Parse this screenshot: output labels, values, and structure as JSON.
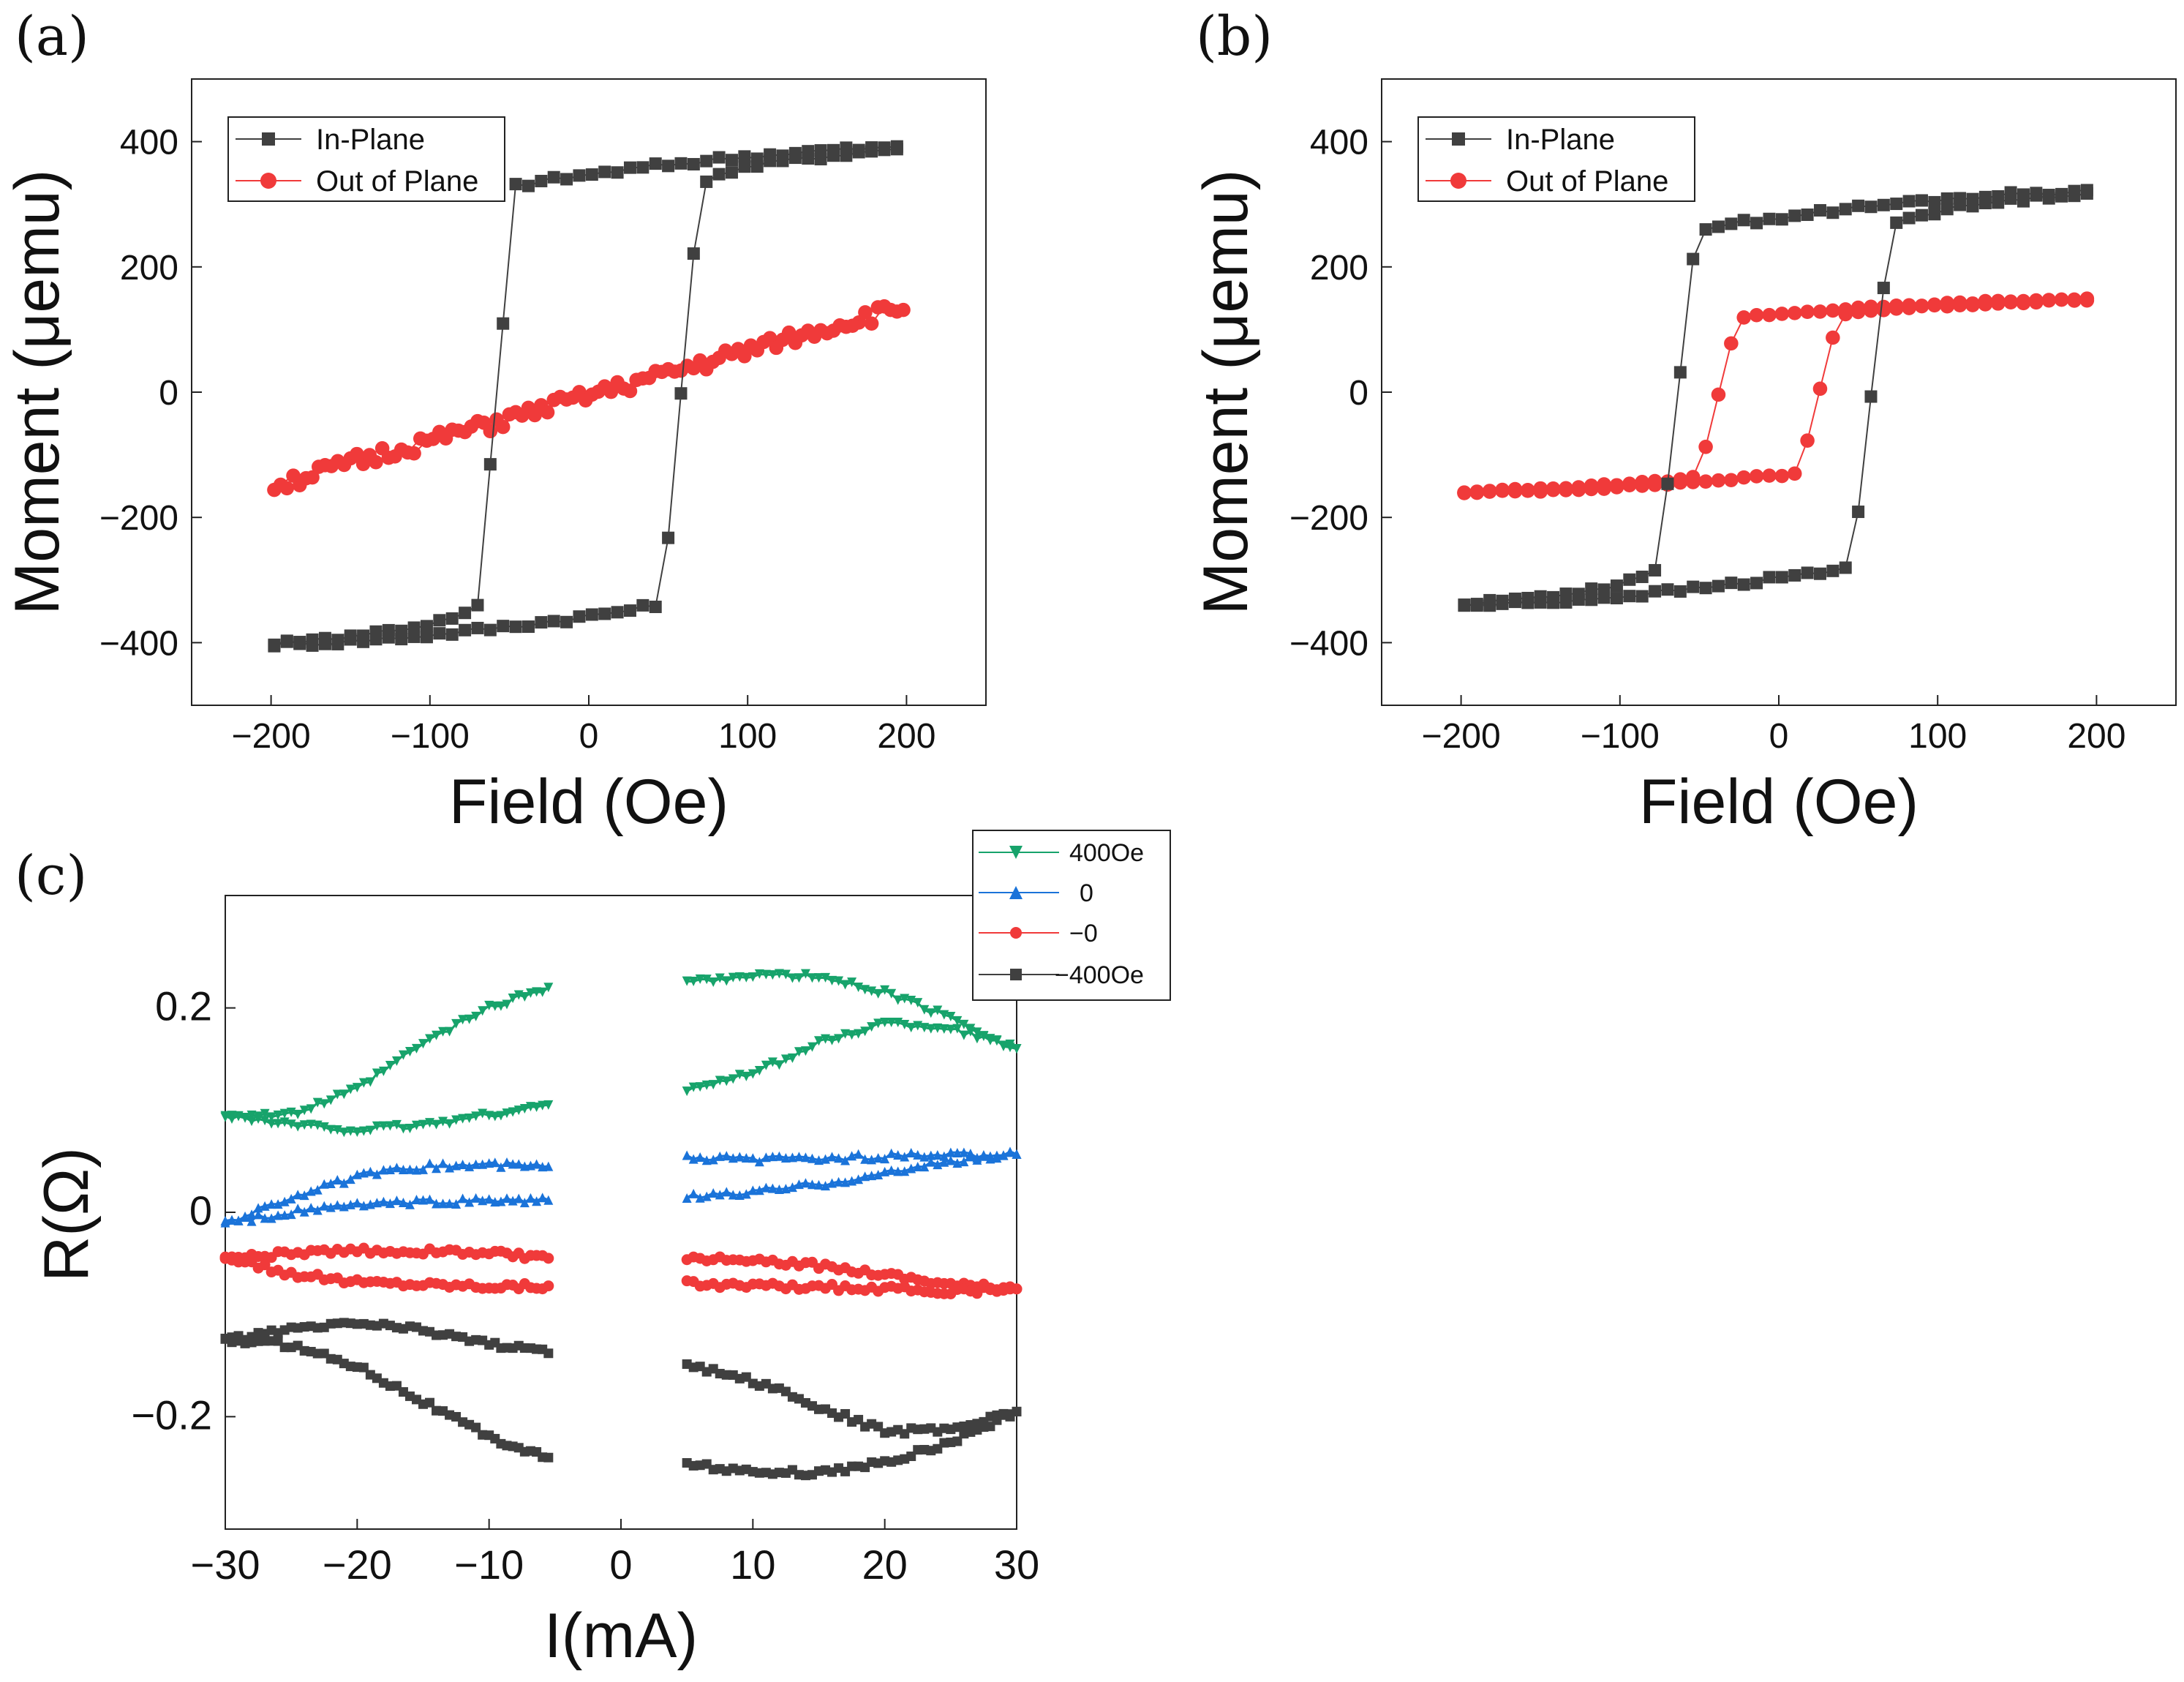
{
  "colors": {
    "in_plane": "#404040",
    "out_of_plane": "#f03a3a",
    "c_400": "#17a36b",
    "c_0": "#1a73d9",
    "c_m0": "#f03a3a",
    "c_m400": "#404040"
  },
  "chart_data": [
    {
      "type": "scatter",
      "panel": "(a)",
      "xlabel": "Field (Oe)",
      "ylabel": "Moment (μemu)",
      "xlim": [
        -250,
        250
      ],
      "ylim": [
        -500,
        500
      ],
      "xticks": [
        -200,
        -100,
        0,
        100,
        200
      ],
      "yticks": [
        -400,
        -200,
        0,
        200,
        400
      ],
      "xtick_labels": [
        "−200",
        "−100",
        "0",
        "100",
        "200"
      ],
      "ytick_labels": [
        "−400",
        "−200",
        "0",
        "200",
        "400"
      ],
      "legend": [
        "In-Plane",
        "Out of Plane"
      ],
      "legend_position": "top-left",
      "series": [
        {
          "name": "In-Plane",
          "marker": "square",
          "loop": {
            "hc_up": 58,
            "hc_down": -58,
            "sat_low": -402,
            "sat_high": 390,
            "knee_low": -340,
            "knee_high": 330
          }
        },
        {
          "name": "Out of Plane",
          "marker": "circle",
          "line": {
            "x_start": -198,
            "x_end": 198,
            "y_start": -150,
            "y_end": 135
          }
        }
      ]
    },
    {
      "type": "scatter",
      "panel": "(b)",
      "xlabel": "Field (Oe)",
      "ylabel": "Moment (μemu)",
      "xlim": [
        -250,
        250
      ],
      "ylim": [
        -500,
        500
      ],
      "xticks": [
        -200,
        -100,
        0,
        100,
        200
      ],
      "yticks": [
        -400,
        -200,
        0,
        200,
        400
      ],
      "xtick_labels": [
        "−200",
        "−100",
        "0",
        "100",
        "200"
      ],
      "ytick_labels": [
        "−400",
        "−200",
        "0",
        "200",
        "400"
      ],
      "legend": [
        "In-Plane",
        "Out of Plane"
      ],
      "legend_position": "top-left",
      "series": [
        {
          "name": "In-Plane",
          "marker": "square",
          "loop": {
            "hc_up": 58,
            "hc_down": -64,
            "sat_low": -340,
            "sat_high": 320,
            "knee_low": -280,
            "knee_high": 260
          }
        },
        {
          "name": "Out of Plane",
          "marker": "circle",
          "loop": {
            "hc_up": 25,
            "hc_down": -38,
            "sat_low": -160,
            "sat_high": 148,
            "knee_low": -130,
            "knee_high": 120
          }
        }
      ]
    },
    {
      "type": "scatter",
      "panel": "(c)",
      "xlabel": "I(mA)",
      "ylabel": "R(Ω)",
      "xlim": [
        -30,
        30
      ],
      "ylim": [
        -0.31,
        0.31
      ],
      "xticks": [
        -30,
        -20,
        -10,
        0,
        10,
        20,
        30
      ],
      "yticks": [
        -0.2,
        0,
        0.2
      ],
      "xtick_labels": [
        "−30",
        "−20",
        "−10",
        "0",
        "10",
        "20",
        "30"
      ],
      "ytick_labels": [
        "−0.2",
        "0",
        "0.2"
      ],
      "legend": [
        "400Oe",
        "0",
        "−0",
        "−400Oe"
      ],
      "legend_position": "top-right",
      "series": [
        {
          "name": "400Oe",
          "marker": "triangle-down",
          "branches": [
            {
              "x": [
                -30,
                -25,
                -20,
                -15,
                -10,
                -5.5
              ],
              "y": [
                0.095,
                0.095,
                0.12,
                0.165,
                0.2,
                0.22
              ]
            },
            {
              "x": [
                -30,
                -25,
                -20,
                -15,
                -10,
                -5.5
              ],
              "y": [
                0.095,
                0.085,
                0.08,
                0.085,
                0.095,
                0.105
              ]
            },
            {
              "x": [
                5,
                10,
                15,
                20,
                25,
                30
              ],
              "y": [
                0.225,
                0.232,
                0.23,
                0.215,
                0.19,
                0.16
              ]
            },
            {
              "x": [
                5,
                10,
                15,
                20,
                25,
                30
              ],
              "y": [
                0.12,
                0.135,
                0.165,
                0.185,
                0.18,
                0.16
              ]
            }
          ]
        },
        {
          "name": "0",
          "marker": "triangle-up",
          "branches": [
            {
              "x": [
                -30,
                -25,
                -20,
                -15,
                -10,
                -5.5
              ],
              "y": [
                -0.01,
                0.015,
                0.035,
                0.045,
                0.047,
                0.045
              ]
            },
            {
              "x": [
                -30,
                -25,
                -20,
                -15,
                -10,
                -5.5
              ],
              "y": [
                -0.01,
                0.0,
                0.008,
                0.01,
                0.012,
                0.012
              ]
            },
            {
              "x": [
                5,
                10,
                15,
                20,
                25,
                30
              ],
              "y": [
                0.053,
                0.052,
                0.053,
                0.055,
                0.056,
                0.057
              ]
            },
            {
              "x": [
                5,
                10,
                15,
                20,
                25,
                30
              ],
              "y": [
                0.015,
                0.02,
                0.028,
                0.038,
                0.05,
                0.057
              ]
            }
          ]
        },
        {
          "name": "−0",
          "marker": "circle",
          "branches": [
            {
              "x": [
                -30,
                -25,
                -20,
                -15,
                -10,
                -5.5
              ],
              "y": [
                -0.045,
                -0.04,
                -0.038,
                -0.038,
                -0.04,
                -0.045
              ]
            },
            {
              "x": [
                -30,
                -25,
                -20,
                -15,
                -10,
                -5.5
              ],
              "y": [
                -0.045,
                -0.06,
                -0.068,
                -0.07,
                -0.072,
                -0.072
              ]
            },
            {
              "x": [
                5,
                10,
                15,
                20,
                25,
                30
              ],
              "y": [
                -0.045,
                -0.048,
                -0.052,
                -0.06,
                -0.07,
                -0.075
              ]
            },
            {
              "x": [
                5,
                10,
                15,
                20,
                25,
                30
              ],
              "y": [
                -0.07,
                -0.072,
                -0.073,
                -0.075,
                -0.078,
                -0.075
              ]
            }
          ]
        },
        {
          "name": "−400Oe",
          "marker": "square",
          "branches": [
            {
              "x": [
                -30,
                -25,
                -20,
                -15,
                -10,
                -5.5
              ],
              "y": [
                -0.125,
                -0.115,
                -0.108,
                -0.115,
                -0.128,
                -0.138
              ]
            },
            {
              "x": [
                -30,
                -25,
                -20,
                -15,
                -10,
                -5.5
              ],
              "y": [
                -0.125,
                -0.13,
                -0.15,
                -0.185,
                -0.22,
                -0.24
              ]
            },
            {
              "x": [
                5,
                10,
                15,
                20,
                25,
                30
              ],
              "y": [
                -0.15,
                -0.165,
                -0.19,
                -0.215,
                -0.212,
                -0.195
              ]
            },
            {
              "x": [
                5,
                10,
                15,
                20,
                25,
                30
              ],
              "y": [
                -0.245,
                -0.255,
                -0.255,
                -0.245,
                -0.225,
                -0.195
              ]
            }
          ]
        }
      ]
    }
  ]
}
